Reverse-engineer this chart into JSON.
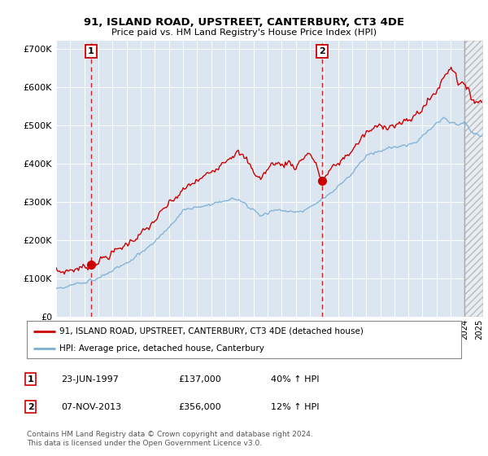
{
  "title": "91, ISLAND ROAD, UPSTREET, CANTERBURY, CT3 4DE",
  "subtitle": "Price paid vs. HM Land Registry's House Price Index (HPI)",
  "ylim": [
    0,
    720000
  ],
  "xlim_start": 1995.0,
  "xlim_end": 2025.3,
  "yticks": [
    0,
    100000,
    200000,
    300000,
    400000,
    500000,
    600000,
    700000
  ],
  "ytick_labels": [
    "£0",
    "£100K",
    "£200K",
    "£300K",
    "£400K",
    "£500K",
    "£600K",
    "£700K"
  ],
  "background_color": "#dce6f1",
  "grid_color": "#ffffff",
  "sale1_date": 1997.48,
  "sale1_price": 137000,
  "sale2_date": 2013.85,
  "sale2_price": 356000,
  "hatch_start": 2024.0,
  "legend_line1": "91, ISLAND ROAD, UPSTREET, CANTERBURY, CT3 4DE (detached house)",
  "legend_line2": "HPI: Average price, detached house, Canterbury",
  "table_row1_num": "1",
  "table_row1_date": "23-JUN-1997",
  "table_row1_price": "£137,000",
  "table_row1_hpi": "40% ↑ HPI",
  "table_row2_num": "2",
  "table_row2_date": "07-NOV-2013",
  "table_row2_price": "£356,000",
  "table_row2_hpi": "12% ↑ HPI",
  "footnote": "Contains HM Land Registry data © Crown copyright and database right 2024.\nThis data is licensed under the Open Government Licence v3.0.",
  "line_color_red": "#cc0000",
  "line_color_blue": "#7bafd4",
  "dot_color": "#cc0000",
  "vline_color": "#aaaaaa"
}
